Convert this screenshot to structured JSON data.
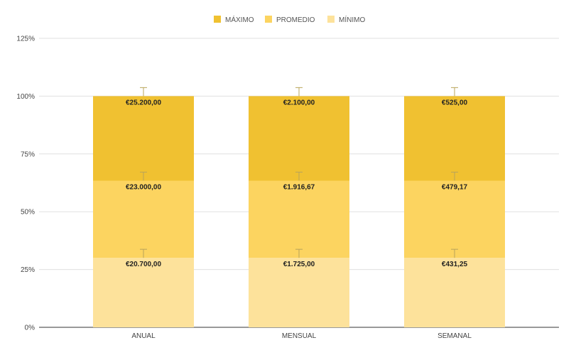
{
  "chart_data": {
    "type": "bar",
    "stacked": "percent",
    "title": "",
    "xlabel": "",
    "ylabel": "",
    "categories": [
      "ANUAL",
      "MENSUAL",
      "SEMANAL"
    ],
    "series": [
      {
        "name": "MÍNIMO",
        "color": "#fde29b",
        "values": [
          20700,
          1725,
          431.25
        ],
        "labels": [
          "€20.700,00",
          "€1.725,00",
          "€431,25"
        ]
      },
      {
        "name": "PROMEDIO",
        "color": "#fcd460",
        "values": [
          23000,
          1916.67,
          479.17
        ],
        "labels": [
          "€23.000,00",
          "€1.916,67",
          "€479,17"
        ]
      },
      {
        "name": "MÁXIMO",
        "color": "#f0c131",
        "values": [
          25200,
          2100,
          525
        ],
        "labels": [
          "€25.200,00",
          "€2.100,00",
          "€525,00"
        ]
      }
    ],
    "legend_order": [
      "MÁXIMO",
      "PROMEDIO",
      "MÍNIMO"
    ],
    "legend_position": "top",
    "ylim": [
      0,
      125
    ],
    "yticks": [
      0,
      25,
      50,
      75,
      100,
      125
    ],
    "ytick_labels": [
      "0%",
      "25%",
      "50%",
      "75%",
      "100%",
      "125%"
    ],
    "error_bar_pct": 3.7,
    "grid": true
  }
}
